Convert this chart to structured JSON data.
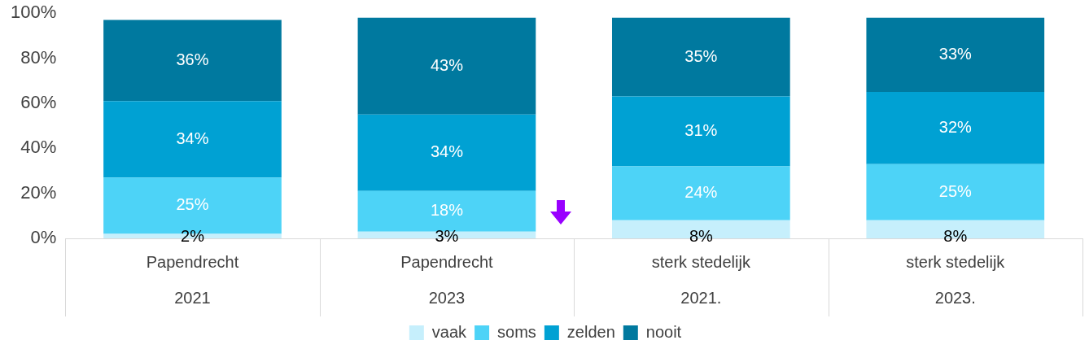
{
  "chart_data": {
    "type": "bar",
    "stacked": true,
    "categories": [
      "Papendrecht\n2021",
      "Papendrecht\n2023",
      "sterk stedelijk\n2021.",
      "sterk stedelijk\n2023."
    ],
    "series": [
      {
        "name": "vaak",
        "color": "#c6effc",
        "values": [
          2,
          3,
          8,
          8
        ],
        "value_labels": [
          "2%",
          "3%",
          "8%",
          "8%"
        ]
      },
      {
        "name": "soms",
        "color": "#4dd3f7",
        "values": [
          25,
          18,
          24,
          25
        ],
        "value_labels": [
          "25%",
          "18%",
          "24%",
          "25%"
        ]
      },
      {
        "name": "zelden",
        "color": "#00a1d3",
        "values": [
          34,
          34,
          31,
          32
        ],
        "value_labels": [
          "34%",
          "34%",
          "31%",
          "32%"
        ]
      },
      {
        "name": "nooit",
        "color": "#00799f",
        "values": [
          36,
          43,
          35,
          33
        ],
        "value_labels": [
          "36%",
          "43%",
          "35%",
          "33%"
        ]
      }
    ],
    "ylim": [
      0,
      100
    ],
    "yticks": [
      {
        "value": 0,
        "label": "0%"
      },
      {
        "value": 20,
        "label": "20%"
      },
      {
        "value": 40,
        "label": "40%"
      },
      {
        "value": 60,
        "label": "60%"
      },
      {
        "value": 80,
        "label": "80%"
      },
      {
        "value": 100,
        "label": "100%"
      }
    ],
    "legend": "bottom"
  }
}
